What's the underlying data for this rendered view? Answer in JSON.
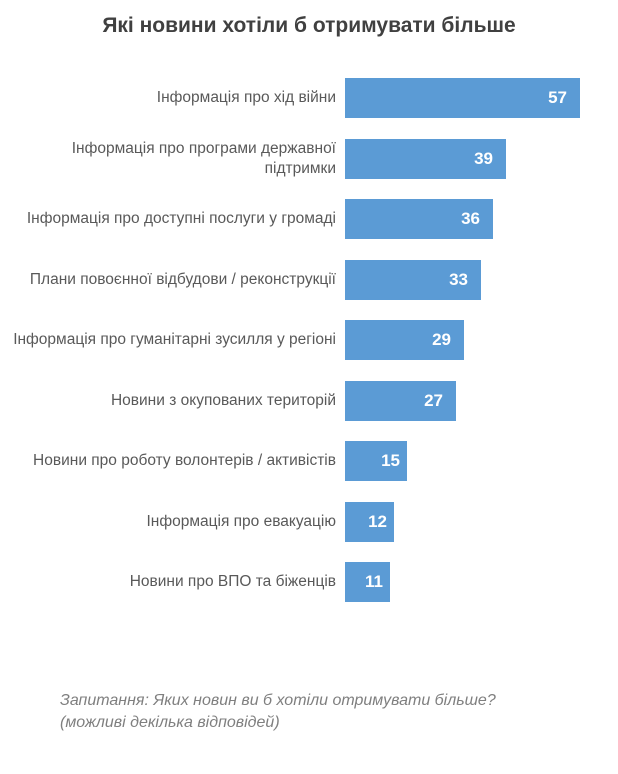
{
  "title": "Які новини хотіли б отримувати більше",
  "footnote": "Запитання: Яких новин ви б хотіли отримувати більше? (можливі декілька відповідей)",
  "colors": {
    "bar": "#5B9BD5",
    "title": "#404040",
    "label": "#595959",
    "value": "#FFFFFF",
    "footer": "#7F7F7F"
  },
  "chart_data": {
    "type": "bar",
    "orientation": "horizontal",
    "title": "Які новини хотіли б отримувати більше",
    "categories": [
      "Інформація про хід війни",
      "Інформація про програми державної підтримки",
      "Інформація про доступні послуги у громаді",
      "Плани повоєнної відбудови / реконструкції",
      "Інформація про гуманітарні зусилля у регіоні",
      "Новини з окупованих територій",
      "Новини про роботу волонтерів / активістів",
      "Інформація про евакуацію",
      "Новини про ВПО та біженців"
    ],
    "values": [
      57,
      39,
      36,
      33,
      29,
      27,
      15,
      12,
      11
    ],
    "value_label_position": "inside-end",
    "xlim": [
      0,
      60
    ],
    "grid": false,
    "legend": false,
    "xlabel": "",
    "ylabel": "",
    "annotation": "Запитання: Яких новин ви б хотіли отримувати більше? (можливі декілька відповідей)"
  }
}
